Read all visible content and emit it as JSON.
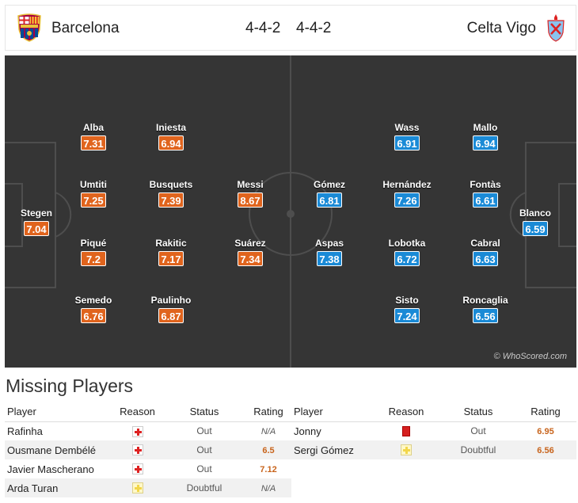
{
  "header": {
    "home_team": "Barcelona",
    "away_team": "Celta Vigo",
    "home_formation": "4-4-2",
    "away_formation": "4-4-2",
    "home_color": "#e0641d",
    "away_color": "#1a8ad6"
  },
  "pitch": {
    "watermark": "© WhoScored.com",
    "home_players": [
      {
        "name": "Stegen",
        "rating": "7.04"
      },
      {
        "name": "Alba",
        "rating": "7.31"
      },
      {
        "name": "Umtiti",
        "rating": "7.25"
      },
      {
        "name": "Piqué",
        "rating": "7.2"
      },
      {
        "name": "Semedo",
        "rating": "6.76"
      },
      {
        "name": "Iniesta",
        "rating": "6.94"
      },
      {
        "name": "Busquets",
        "rating": "7.39"
      },
      {
        "name": "Rakitic",
        "rating": "7.17"
      },
      {
        "name": "Paulinho",
        "rating": "6.87"
      },
      {
        "name": "Messi",
        "rating": "8.67"
      },
      {
        "name": "Suárez",
        "rating": "7.34"
      }
    ],
    "away_players": [
      {
        "name": "Gómez",
        "rating": "6.81"
      },
      {
        "name": "Aspas",
        "rating": "7.38"
      },
      {
        "name": "Wass",
        "rating": "6.91"
      },
      {
        "name": "Hernández",
        "rating": "7.26"
      },
      {
        "name": "Lobotka",
        "rating": "6.72"
      },
      {
        "name": "Sisto",
        "rating": "7.24"
      },
      {
        "name": "Mallo",
        "rating": "6.94"
      },
      {
        "name": "Fontàs",
        "rating": "6.61"
      },
      {
        "name": "Cabral",
        "rating": "6.63"
      },
      {
        "name": "Roncaglia",
        "rating": "6.56"
      },
      {
        "name": "Blanco",
        "rating": "6.59"
      }
    ]
  },
  "missing": {
    "title": "Missing Players",
    "columns": {
      "player": "Player",
      "reason": "Reason",
      "status": "Status",
      "rating": "Rating"
    },
    "home": [
      {
        "player": "Rafinha",
        "reason_icon": "injury-icon",
        "status": "Out",
        "rating": "N/A"
      },
      {
        "player": "Ousmane Dembélé",
        "reason_icon": "injury-icon",
        "status": "Out",
        "rating": "6.5"
      },
      {
        "player": "Javier Mascherano",
        "reason_icon": "injury-icon",
        "status": "Out",
        "rating": "7.12"
      },
      {
        "player": "Arda Turan",
        "reason_icon": "doubtful-icon",
        "status": "Doubtful",
        "rating": "N/A"
      }
    ],
    "away": [
      {
        "player": "Jonny",
        "reason_icon": "red-card-icon",
        "status": "Out",
        "rating": "6.95"
      },
      {
        "player": "Sergi Gómez",
        "reason_icon": "doubtful-icon",
        "status": "Doubtful",
        "rating": "6.56"
      }
    ]
  }
}
